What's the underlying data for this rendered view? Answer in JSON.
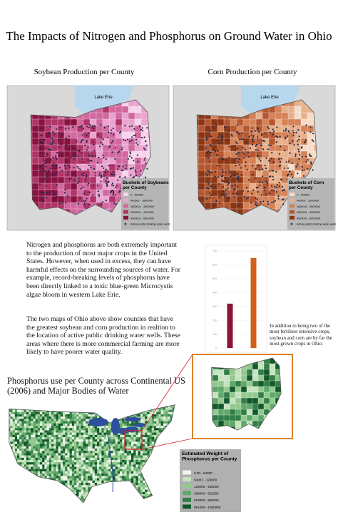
{
  "header": {
    "title": "The Impacts of Nitrogen and Phosphorus on Ground Water in Ohio"
  },
  "maps": [
    {
      "title": "Soybean Production per County",
      "lake_label": "Lake Erie",
      "legend_title": "Bushels of Soybeans per County",
      "legend_items": [
        "0 - 400000",
        "400001 - 1600000",
        "1600001 - 2600000",
        "2600001 - 4000000",
        "4000001 - 6000000",
        "Active public drinking water wells"
      ]
    },
    {
      "title": "Corn Production per County",
      "lake_label": "Lake Erie",
      "legend_title": "Bushels of Corn per County",
      "legend_items": [
        "0 - 400000",
        "400001 - 1600000",
        "1600001 - 2600000",
        "2600001 - 4000000",
        "4000001 - 6000000",
        "Active public drinking water wells"
      ]
    }
  ],
  "text": {
    "paragraphs": [
      "Nitrogen and phosphorus are both extremely important to the production of most major crops in the United States. However, when used in excess, they can have harmful effects on the surrounding sources of water. For example, record-breaking levels of phosphorus have been directly linked to a toxic blue-green Microcystis algae bloom in western Lake Erie.",
      "The two maps of Ohio above show counties that have the greatest soybean and corn production in realtion to the location of active public drinking water wells. These areas where there is more commercial farming are more likely to have poorer water quality."
    ],
    "note": "In addition to being two of the most fertilizer intensive crops, soybean and corn are by far the most grown crops in Ohio."
  },
  "chart_data": {
    "type": "bar",
    "categories": [
      null,
      null
    ],
    "values": [
      320,
      650
    ],
    "colors": [
      "#8b1535",
      "#d2601a"
    ],
    "ylim": [
      0,
      700
    ],
    "yticks": [
      0,
      100,
      200,
      300,
      400,
      500,
      600,
      700
    ],
    "grid": true
  },
  "phosphorus_map": {
    "title": "Phosphorus use per County across Continental US (2006) and Major Bodies of Water",
    "legend_title": "Estimated Weight of Phosphorus per County",
    "legend_items": [
      "0.00 - 54000",
      "54001 - 124000",
      "125000 - 268000",
      "268000 - 522000",
      "523000 - 990000",
      "991000 - 1560000"
    ]
  }
}
